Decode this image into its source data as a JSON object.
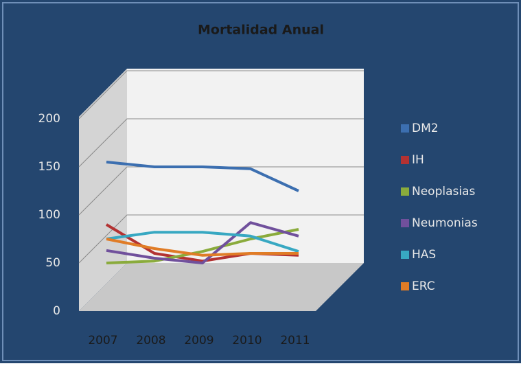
{
  "chart_data": {
    "type": "line",
    "title": "Mortalidad Anual",
    "categories": [
      "2007",
      "2008",
      "2009",
      "2010",
      "2011"
    ],
    "ylim": [
      0,
      200
    ],
    "yticks": [
      0,
      50,
      100,
      150,
      200
    ],
    "grid": true,
    "legend": "right",
    "series": [
      {
        "name": "DM2",
        "color": "#3c6fb0",
        "values": [
          155,
          150,
          150,
          148,
          125
        ]
      },
      {
        "name": "IH",
        "color": "#b33232",
        "values": [
          90,
          60,
          52,
          60,
          58
        ]
      },
      {
        "name": "Neoplasias",
        "color": "#8aab3c",
        "values": [
          50,
          52,
          62,
          75,
          85
        ]
      },
      {
        "name": "Neumonias",
        "color": "#70509c",
        "values": [
          63,
          55,
          50,
          92,
          78
        ]
      },
      {
        "name": "HAS",
        "color": "#38a8c2",
        "values": [
          75,
          82,
          82,
          78,
          62
        ]
      },
      {
        "name": "ERC",
        "color": "#e07c26",
        "values": [
          75,
          65,
          58,
          60,
          60
        ]
      }
    ]
  }
}
